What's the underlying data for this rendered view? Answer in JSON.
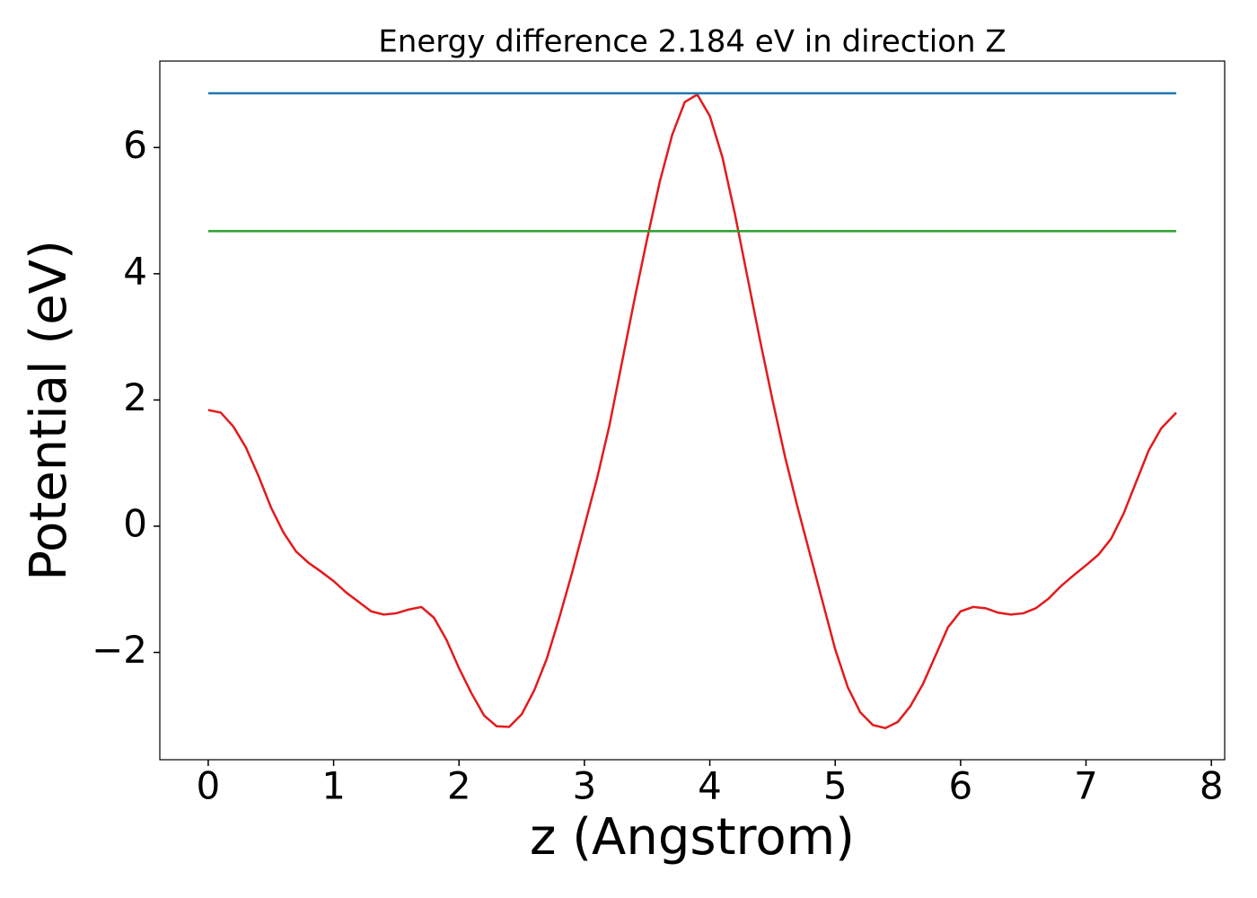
{
  "chart_data": {
    "type": "line",
    "title": "Energy difference 2.184 eV in direction Z",
    "xlabel": "z (Angstrom)",
    "ylabel": "Potential (eV)",
    "xlim": [
      -0.386,
      8.106
    ],
    "ylim": [
      -3.7,
      7.37
    ],
    "xticks": [
      0,
      1,
      2,
      3,
      4,
      5,
      6,
      7,
      8
    ],
    "yticks": [
      {
        "value": -2,
        "label": "−2"
      },
      0,
      2,
      4,
      6
    ],
    "series": [
      {
        "color": "#e31a1c",
        "x": [
          0,
          0.1,
          0.2,
          0.3,
          0.4,
          0.5,
          0.6,
          0.7,
          0.8,
          0.9,
          1.0,
          1.1,
          1.2,
          1.3,
          1.4,
          1.5,
          1.6,
          1.7,
          1.8,
          1.9,
          2.0,
          2.1,
          2.2,
          2.3,
          2.4,
          2.5,
          2.6,
          2.7,
          2.8,
          2.9,
          3.0,
          3.1,
          3.2,
          3.3,
          3.4,
          3.5,
          3.6,
          3.7,
          3.8,
          3.9,
          4.0,
          4.1,
          4.2,
          4.3,
          4.4,
          4.5,
          4.6,
          4.7,
          4.8,
          4.9,
          5.0,
          5.1,
          5.2,
          5.3,
          5.4,
          5.5,
          5.6,
          5.7,
          5.8,
          5.9,
          6.0,
          6.1,
          6.2,
          6.3,
          6.4,
          6.5,
          6.6,
          6.7,
          6.8,
          6.9,
          7.0,
          7.1,
          7.2,
          7.3,
          7.4,
          7.5,
          7.6,
          7.72
        ],
        "values": [
          1.84,
          1.8,
          1.58,
          1.25,
          0.8,
          0.3,
          -0.1,
          -0.4,
          -0.58,
          -0.72,
          -0.87,
          -1.05,
          -1.2,
          -1.35,
          -1.4,
          -1.38,
          -1.32,
          -1.28,
          -1.45,
          -1.8,
          -2.25,
          -2.65,
          -3.0,
          -3.17,
          -3.18,
          -2.98,
          -2.6,
          -2.1,
          -1.45,
          -0.75,
          0.0,
          0.75,
          1.6,
          2.6,
          3.6,
          4.55,
          5.45,
          6.2,
          6.72,
          6.84,
          6.5,
          5.85,
          4.95,
          3.95,
          2.95,
          2.0,
          1.1,
          0.3,
          -0.45,
          -1.2,
          -1.95,
          -2.55,
          -2.95,
          -3.15,
          -3.2,
          -3.1,
          -2.85,
          -2.5,
          -2.05,
          -1.6,
          -1.35,
          -1.28,
          -1.3,
          -1.37,
          -1.4,
          -1.38,
          -1.3,
          -1.15,
          -0.95,
          -0.78,
          -0.62,
          -0.45,
          -0.2,
          0.2,
          0.7,
          1.2,
          1.55,
          1.8
        ]
      },
      {
        "color": "#1f77b4",
        "x": [
          0,
          7.72
        ],
        "values": [
          6.86,
          6.86
        ]
      },
      {
        "color": "#2ca02c",
        "x": [
          0,
          7.72
        ],
        "values": [
          4.676,
          4.676
        ]
      }
    ]
  }
}
